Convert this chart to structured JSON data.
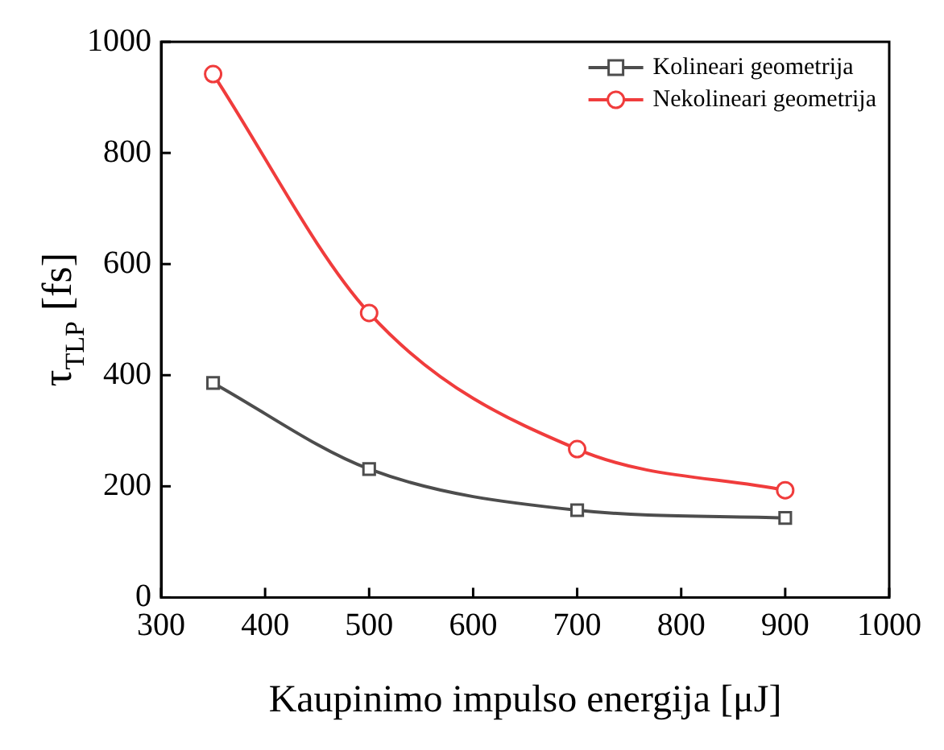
{
  "chart_data": {
    "type": "line",
    "xlabel": "Kaupinimo impulso energija [μJ]",
    "ylabel": "τ$_{TLP}$ [fs]",
    "x": [
      350,
      500,
      700,
      900
    ],
    "series": [
      {
        "name": "Kolineari geometrija",
        "color": "#4d4d4d",
        "marker": "square",
        "values": [
          386,
          231,
          157,
          143
        ]
      },
      {
        "name": "Nekolineari geometrija",
        "color": "#f03c3c",
        "marker": "circle",
        "values": [
          942,
          512,
          267,
          193
        ]
      }
    ],
    "xlim": [
      300,
      1000
    ],
    "xticks": [
      300,
      400,
      500,
      600,
      700,
      800,
      900,
      1000
    ],
    "ylim": [
      0,
      1000
    ],
    "yticks": [
      0,
      200,
      400,
      600,
      800,
      1000
    ],
    "grid": false,
    "legend": "top right"
  }
}
